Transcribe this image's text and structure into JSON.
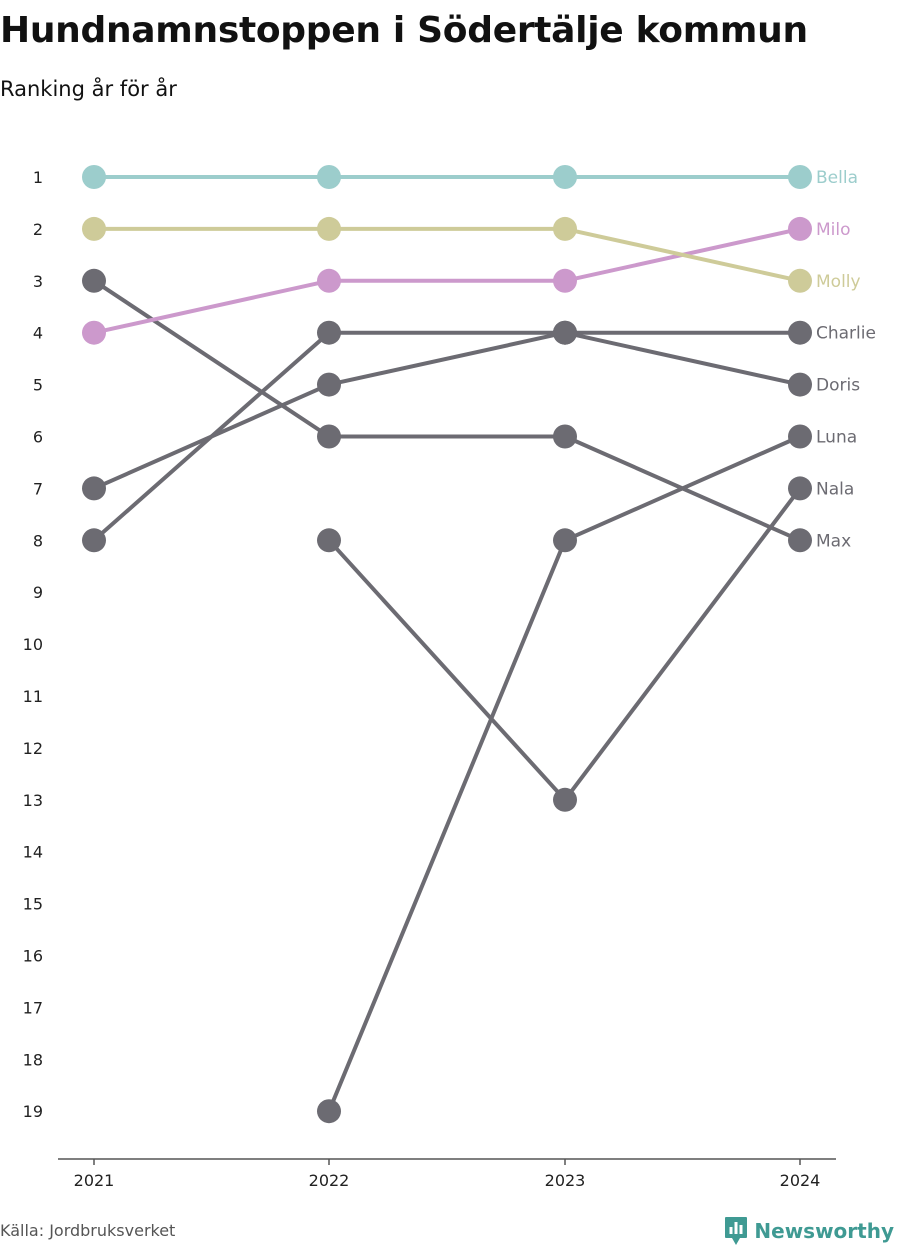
{
  "header": {
    "title": "Hundnamnstoppen i Södertälje kommun",
    "subtitle": "Ranking år för år"
  },
  "footer": {
    "source": "Källa: Jordbruksverket",
    "brand": "Newsworthy"
  },
  "colors": {
    "teal": "#9ccdcc",
    "olive": "#cecb99",
    "pink": "#cc99cc",
    "gray": "#6c6b72",
    "axis": "#555555",
    "brand": "#3f9a93"
  },
  "chart_data": {
    "type": "line",
    "x": [
      "2021",
      "2022",
      "2023",
      "2024"
    ],
    "y_ticks": [
      "1",
      "2",
      "3",
      "4",
      "5",
      "6",
      "7",
      "8",
      "9",
      "10",
      "11",
      "12",
      "13",
      "14",
      "15",
      "16",
      "17",
      "18",
      "19"
    ],
    "ylim": [
      1,
      19
    ],
    "y_reversed": true,
    "grid": false,
    "legend": "end-labels",
    "series": [
      {
        "name": "Bella",
        "values": [
          1,
          1,
          1,
          1
        ],
        "color": "#9ccdcc"
      },
      {
        "name": "Milo",
        "values": [
          4,
          3,
          3,
          2
        ],
        "color": "#cc99cc"
      },
      {
        "name": "Molly",
        "values": [
          2,
          2,
          2,
          3
        ],
        "color": "#cecb99"
      },
      {
        "name": "Charlie",
        "values": [
          8,
          4,
          4,
          4
        ],
        "color": "#6c6b72"
      },
      {
        "name": "Doris",
        "values": [
          7,
          5,
          4,
          5
        ],
        "color": "#6c6b72"
      },
      {
        "name": "Luna",
        "values": [
          null,
          19,
          8,
          6
        ],
        "color": "#6c6b72"
      },
      {
        "name": "Nala",
        "values": [
          null,
          8,
          13,
          7
        ],
        "color": "#6c6b72"
      },
      {
        "name": "Max",
        "values": [
          3,
          6,
          6,
          8
        ],
        "color": "#6c6b72"
      }
    ]
  }
}
